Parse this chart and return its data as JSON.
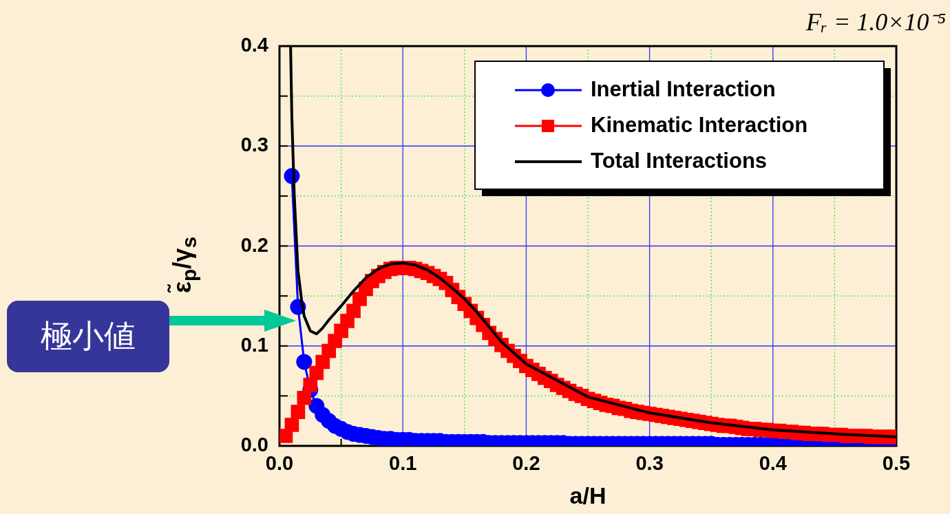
{
  "chart_data": {
    "type": "line",
    "xlabel": "a/H",
    "ylabel": "ε̃$_{p}$/γ$_{s}$",
    "annotations": [
      "Fᵣ = 1.0×10⁻⁵",
      "極小値"
    ],
    "x": [
      0.005,
      0.01,
      0.015,
      0.02,
      0.025,
      0.03,
      0.035,
      0.04,
      0.045,
      0.05,
      0.055,
      0.06,
      0.065,
      0.07,
      0.075,
      0.08,
      0.085,
      0.09,
      0.095,
      0.1,
      0.105,
      0.11,
      0.115,
      0.12,
      0.125,
      0.13,
      0.135,
      0.14,
      0.145,
      0.15,
      0.155,
      0.16,
      0.165,
      0.17,
      0.175,
      0.18,
      0.185,
      0.19,
      0.195,
      0.2,
      0.205,
      0.21,
      0.215,
      0.22,
      0.225,
      0.23,
      0.235,
      0.24,
      0.245,
      0.25,
      0.255,
      0.26,
      0.265,
      0.27,
      0.275,
      0.28,
      0.285,
      0.29,
      0.295,
      0.3,
      0.305,
      0.31,
      0.315,
      0.32,
      0.325,
      0.33,
      0.335,
      0.34,
      0.345,
      0.35,
      0.355,
      0.36,
      0.365,
      0.37,
      0.375,
      0.38,
      0.385,
      0.39,
      0.395,
      0.4,
      0.405,
      0.41,
      0.415,
      0.42,
      0.425,
      0.43,
      0.435,
      0.44,
      0.445,
      0.45,
      0.455,
      0.46,
      0.465,
      0.47,
      0.475,
      0.48,
      0.485,
      0.49,
      0.495,
      0.5
    ],
    "series": [
      {
        "name": "Inertial Interaction",
        "color": "#0000ff",
        "marker": "circle",
        "values": [
          null,
          0.27,
          0.139,
          0.084,
          0.056,
          0.04,
          0.031,
          0.025,
          0.02,
          0.017,
          0.014,
          0.012,
          0.011,
          0.01,
          0.009,
          0.008,
          0.007,
          0.007,
          0.006,
          0.006,
          0.006,
          0.005,
          0.005,
          0.005,
          0.005,
          0.005,
          0.004,
          0.004,
          0.004,
          0.004,
          0.004,
          0.004,
          0.004,
          0.003,
          0.003,
          0.003,
          0.003,
          0.003,
          0.003,
          0.003,
          0.003,
          0.003,
          0.003,
          0.003,
          0.003,
          0.003,
          0.002,
          0.002,
          0.002,
          0.002,
          0.002,
          0.002,
          0.002,
          0.002,
          0.002,
          0.002,
          0.002,
          0.002,
          0.002,
          0.002,
          0.002,
          0.002,
          0.002,
          0.002,
          0.002,
          0.002,
          0.002,
          0.002,
          0.002,
          0.002,
          0.001,
          0.001,
          0.001,
          0.001,
          0.001,
          0.001,
          0.001,
          0.001,
          0.001,
          0.001,
          0.001,
          0.001,
          0.001,
          0.001,
          0.001,
          0.001,
          0.001,
          0.001,
          0.001,
          0.001,
          0.001,
          0.001,
          0.001,
          0.001,
          0.001,
          0.001,
          0.001,
          0.001,
          0.001,
          0.001
        ]
      },
      {
        "name": "Kinematic Interaction",
        "color": "#ff0000",
        "marker": "square",
        "values": [
          0.01,
          0.021,
          0.034,
          0.048,
          0.061,
          0.073,
          0.084,
          0.095,
          0.105,
          0.115,
          0.125,
          0.135,
          0.147,
          0.157,
          0.165,
          0.17,
          0.174,
          0.177,
          0.178,
          0.178,
          0.178,
          0.177,
          0.175,
          0.173,
          0.17,
          0.167,
          0.163,
          0.156,
          0.149,
          0.142,
          0.135,
          0.128,
          0.121,
          0.113,
          0.107,
          0.101,
          0.095,
          0.09,
          0.085,
          0.08,
          0.076,
          0.072,
          0.068,
          0.065,
          0.061,
          0.058,
          0.055,
          0.052,
          0.05,
          0.047,
          0.045,
          0.043,
          0.041,
          0.04,
          0.038,
          0.037,
          0.035,
          0.034,
          0.033,
          0.032,
          0.031,
          0.03,
          0.029,
          0.028,
          0.027,
          0.026,
          0.025,
          0.024,
          0.023,
          0.022,
          0.021,
          0.02,
          0.02,
          0.019,
          0.018,
          0.017,
          0.017,
          0.016,
          0.016,
          0.015,
          0.015,
          0.014,
          0.014,
          0.013,
          0.013,
          0.012,
          0.012,
          0.012,
          0.011,
          0.011,
          0.011,
          0.01,
          0.01,
          0.01,
          0.01,
          0.009,
          0.009,
          0.009,
          0.009,
          0.009
        ]
      },
      {
        "name": "Total Interactions",
        "color": "#000000",
        "marker": "none",
        "x": [
          0.009,
          0.01,
          0.012,
          0.015,
          0.018,
          0.02,
          0.025,
          0.03,
          0.035,
          0.04,
          0.05,
          0.06,
          0.07,
          0.08,
          0.09,
          0.1,
          0.11,
          0.12,
          0.13,
          0.14,
          0.15,
          0.16,
          0.17,
          0.18,
          0.2,
          0.25,
          0.3,
          0.35,
          0.4,
          0.45,
          0.5
        ],
        "values": [
          0.4,
          0.33,
          0.25,
          0.175,
          0.145,
          0.13,
          0.115,
          0.112,
          0.118,
          0.126,
          0.14,
          0.155,
          0.168,
          0.177,
          0.182,
          0.183,
          0.181,
          0.176,
          0.168,
          0.158,
          0.147,
          0.134,
          0.119,
          0.104,
          0.082,
          0.049,
          0.033,
          0.023,
          0.016,
          0.012,
          0.009
        ]
      }
    ],
    "xlim": [
      0,
      0.5
    ],
    "ylim": [
      0,
      0.4
    ],
    "xticks": [
      {
        "value": 0,
        "label": "0.0"
      },
      {
        "value": 0.05,
        "label": null
      },
      {
        "value": 0.1,
        "label": "0.1"
      },
      {
        "value": 0.15,
        "label": null
      },
      {
        "value": 0.2,
        "label": "0.2"
      },
      {
        "value": 0.25,
        "label": null
      },
      {
        "value": 0.3,
        "label": "0.3"
      },
      {
        "value": 0.35,
        "label": null
      },
      {
        "value": 0.4,
        "label": "0.4"
      },
      {
        "value": 0.45,
        "label": null
      },
      {
        "value": 0.5,
        "label": "0.5"
      }
    ],
    "yticks": [
      {
        "value": 0,
        "label": "0.0"
      },
      {
        "value": 0.05,
        "label": null
      },
      {
        "value": 0.1,
        "label": "0.1"
      },
      {
        "value": 0.15,
        "label": null
      },
      {
        "value": 0.2,
        "label": "0.2"
      },
      {
        "value": 0.25,
        "label": null
      },
      {
        "value": 0.3,
        "label": "0.3"
      },
      {
        "value": 0.35,
        "label": null
      },
      {
        "value": 0.4,
        "label": "0.4"
      }
    ],
    "grid": true,
    "legend": "top right"
  }
}
